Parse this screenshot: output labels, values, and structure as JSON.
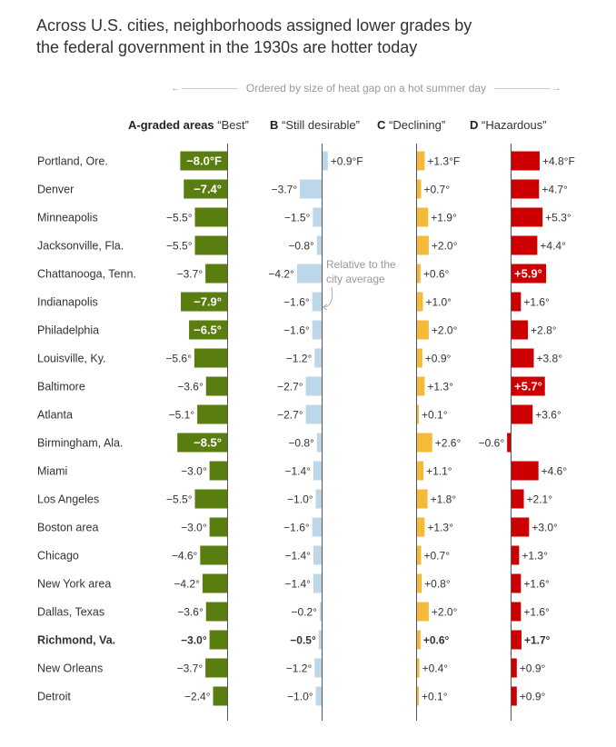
{
  "title": {
    "line1": "Across U.S. cities, neighborhoods assigned lower grades by",
    "line2": "the federal government in the 1930s are hotter today"
  },
  "ordered_note": "Ordered by size of heat gap on a hot summer day",
  "columns": [
    {
      "letter": "A-graded areas",
      "desc": "“Best”"
    },
    {
      "letter": "B",
      "desc": "“Still desirable”"
    },
    {
      "letter": "C",
      "desc": "“Declining”"
    },
    {
      "letter": "D",
      "desc": "“Hazardous”"
    }
  ],
  "annotation": {
    "line1": "Relative to the",
    "line2": "city average"
  },
  "colors": {
    "A": "#5a7d0f",
    "B": "#bcd6ea",
    "C": "#f6ba39",
    "D": "#cc0000",
    "axis": "#555555"
  },
  "chart_data": {
    "type": "bar",
    "unit": "°F",
    "categories": [
      "Portland, Ore.",
      "Denver",
      "Minneapolis",
      "Jacksonville, Fla.",
      "Chattanooga, Tenn.",
      "Indianapolis",
      "Philadelphia",
      "Louisville, Ky.",
      "Baltimore",
      "Atlanta",
      "Birmingham, Ala.",
      "Miami",
      "Los Angeles",
      "Boston area",
      "Chicago",
      "New York area",
      "Dallas, Texas",
      "Richmond, Va.",
      "New Orleans",
      "Detroit"
    ],
    "highlight": "Richmond, Va.",
    "series": [
      {
        "name": "A-graded areas “Best”",
        "values": [
          -8.0,
          -7.4,
          -5.5,
          -5.5,
          -3.7,
          -7.9,
          -6.5,
          -5.6,
          -3.6,
          -5.1,
          -8.5,
          -3.0,
          -5.5,
          -3.0,
          -4.6,
          -4.2,
          -3.6,
          -3.0,
          -3.7,
          -2.4
        ]
      },
      {
        "name": "B “Still desirable”",
        "values": [
          0.9,
          -3.7,
          -1.5,
          -0.8,
          -4.2,
          -1.6,
          -1.6,
          -1.2,
          -2.7,
          -2.7,
          -0.8,
          -1.4,
          -1.0,
          -1.6,
          -1.4,
          -1.4,
          -0.2,
          -0.5,
          -1.2,
          -1.0
        ]
      },
      {
        "name": "C “Declining”",
        "values": [
          1.3,
          0.7,
          1.9,
          2.0,
          0.6,
          1.0,
          2.0,
          0.9,
          1.3,
          0.1,
          2.6,
          1.1,
          1.8,
          1.3,
          0.7,
          0.8,
          2.0,
          0.6,
          0.4,
          0.1
        ]
      },
      {
        "name": "D “Hazardous”",
        "values": [
          4.8,
          4.7,
          5.3,
          4.4,
          5.9,
          1.6,
          2.8,
          3.8,
          5.7,
          3.6,
          -0.6,
          4.6,
          2.1,
          3.0,
          1.3,
          1.6,
          1.6,
          1.7,
          0.9,
          0.9
        ]
      }
    ],
    "labels": [
      [
        "−8.0°F",
        "+0.9°F",
        "+1.3°F",
        "+4.8°F"
      ],
      [
        "−7.4°",
        "−3.7°",
        "+0.7°",
        "+4.7°"
      ],
      [
        "−5.5°",
        "−1.5°",
        "+1.9°",
        "+5.3°"
      ],
      [
        "−5.5°",
        "−0.8°",
        "+2.0°",
        "+4.4°"
      ],
      [
        "−3.7°",
        "−4.2°",
        "+0.6°",
        "+5.9°"
      ],
      [
        "−7.9°",
        "−1.6°",
        "+1.0°",
        "+1.6°"
      ],
      [
        "−6.5°",
        "−1.6°",
        "+2.0°",
        "+2.8°"
      ],
      [
        "−5.6°",
        "−1.2°",
        "+0.9°",
        "+3.8°"
      ],
      [
        "−3.6°",
        "−2.7°",
        "+1.3°",
        "+5.7°"
      ],
      [
        "−5.1°",
        "−2.7°",
        "+0.1°",
        "+3.6°"
      ],
      [
        "−8.5°",
        "−0.8°",
        "+2.6°",
        "−0.6°"
      ],
      [
        "−3.0°",
        "−1.4°",
        "+1.1°",
        "+4.6°"
      ],
      [
        "−5.5°",
        "−1.0°",
        "+1.8°",
        "+2.1°"
      ],
      [
        "−3.0°",
        "−1.6°",
        "+1.3°",
        "+3.0°"
      ],
      [
        "−4.6°",
        "−1.4°",
        "+0.7°",
        "+1.3°"
      ],
      [
        "−4.2°",
        "−1.4°",
        "+0.8°",
        "+1.6°"
      ],
      [
        "−3.6°",
        "−0.2°",
        "+2.0°",
        "+1.6°"
      ],
      [
        "−3.0°",
        "−0.5°",
        "+0.6°",
        "+1.7°"
      ],
      [
        "−3.7°",
        "−1.2°",
        "+0.4°",
        "+0.9°"
      ],
      [
        "−2.4°",
        "−1.0°",
        "+0.1°",
        "+0.9°"
      ]
    ]
  }
}
